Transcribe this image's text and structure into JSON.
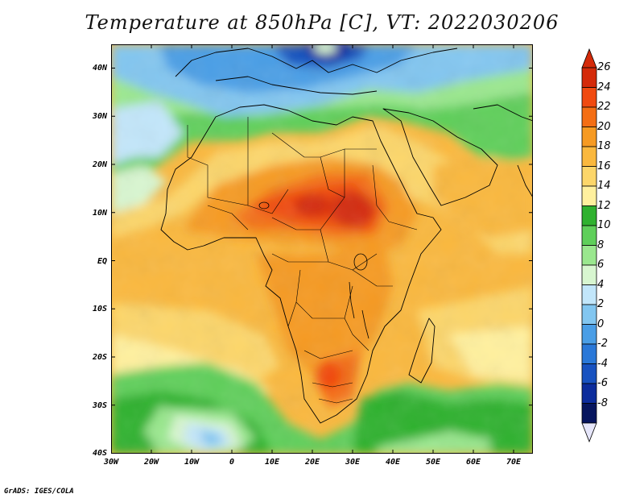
{
  "title": "Temperature at 850hPa [C], VT: 2022030206",
  "footer": "GrADS: IGES/COLA",
  "map": {
    "projection": "latlon",
    "lon_range": [
      -30,
      75
    ],
    "lat_range": [
      -40,
      45
    ],
    "lat_labels": [
      "40N",
      "30N",
      "20N",
      "10N",
      "EQ",
      "10S",
      "20S",
      "30S",
      "40S"
    ],
    "lon_labels": [
      "30W",
      "20W",
      "10W",
      "0",
      "10E",
      "20E",
      "30E",
      "40E",
      "50E",
      "60E",
      "70E"
    ]
  },
  "colorbar": {
    "labels": [
      "26",
      "24",
      "22",
      "20",
      "18",
      "16",
      "14",
      "12",
      "10",
      "8",
      "6",
      "4",
      "2",
      "0",
      "-2",
      "-4",
      "-6",
      "-8"
    ],
    "colors": [
      "#d42a0a",
      "#f04a10",
      "#f46e14",
      "#f69a22",
      "#fab83e",
      "#fcd66a",
      "#fff09e",
      "#2fb12f",
      "#5fcf5a",
      "#9ae78e",
      "#d8f6d0",
      "#c2e6fa",
      "#82c6f0",
      "#4a9ee6",
      "#2a78d8",
      "#1852c0",
      "#0c2c9c",
      "#06155e"
    ]
  }
}
